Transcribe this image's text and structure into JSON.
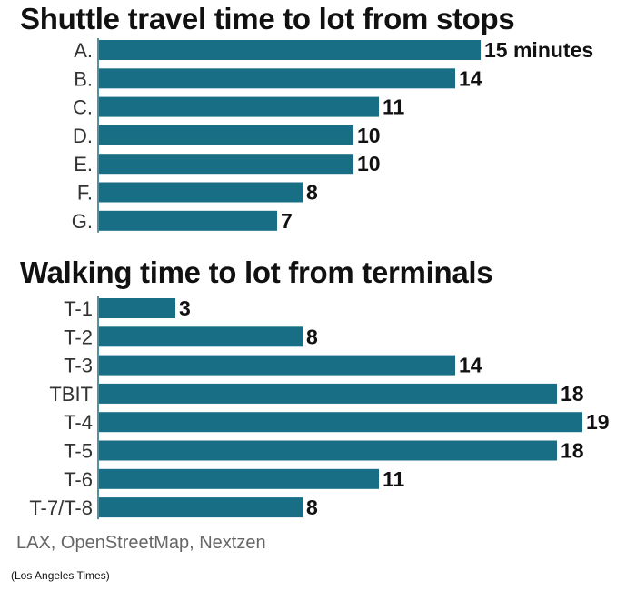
{
  "colors": {
    "bar": "#186e85",
    "axis": "#1b6b80"
  },
  "chart_data": [
    {
      "type": "bar",
      "orientation": "horizontal",
      "title": "Shuttle travel time to lot from stops",
      "categories": [
        "A.",
        "B.",
        "C.",
        "D.",
        "E.",
        "F.",
        "G."
      ],
      "values": [
        15,
        14,
        11,
        10,
        10,
        8,
        7
      ],
      "value_labels": [
        "15 minutes",
        "14",
        "11",
        "10",
        "10",
        "8",
        "7"
      ],
      "xlim": [
        0,
        19
      ],
      "grid": false,
      "legend": "none"
    },
    {
      "type": "bar",
      "orientation": "horizontal",
      "title": "Walking time to lot from terminals",
      "categories": [
        "T-1",
        "T-2",
        "T-3",
        "TBIT",
        "T-4",
        "T-5",
        "T-6",
        "T-7/T-8"
      ],
      "values": [
        3,
        8,
        14,
        18,
        19,
        18,
        11,
        8
      ],
      "value_labels": [
        "3",
        "8",
        "14",
        "18",
        "19",
        "18",
        "11",
        "8"
      ],
      "xlim": [
        0,
        19
      ],
      "grid": false,
      "legend": "none"
    }
  ],
  "source": "LAX, OpenStreetMap, Nextzen",
  "credit": "(Los Angeles Times)"
}
